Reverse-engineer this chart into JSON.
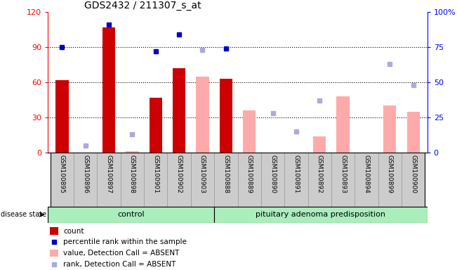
{
  "title": "GDS2432 / 211307_s_at",
  "samples": [
    "GSM100895",
    "GSM100896",
    "GSM100897",
    "GSM100898",
    "GSM100901",
    "GSM100902",
    "GSM100903",
    "GSM100888",
    "GSM100889",
    "GSM100890",
    "GSM100891",
    "GSM100892",
    "GSM100893",
    "GSM100894",
    "GSM100899",
    "GSM100900"
  ],
  "group_labels": [
    "control",
    "pituitary adenoma predisposition"
  ],
  "group_sizes": [
    7,
    9
  ],
  "disease_state_label": "disease state",
  "count_values": [
    62,
    0,
    107,
    0,
    47,
    72,
    0,
    63,
    0,
    0,
    0,
    0,
    0,
    0,
    0,
    0
  ],
  "count_absent_values": [
    0,
    0,
    0,
    1,
    0,
    0,
    65,
    0,
    36,
    0,
    0,
    14,
    48,
    0,
    40,
    35
  ],
  "percentile_rank_values": [
    75,
    null,
    91,
    null,
    72,
    84,
    null,
    74,
    null,
    null,
    null,
    null,
    null,
    null,
    null,
    null
  ],
  "rank_absent_values": [
    null,
    5,
    null,
    13,
    null,
    null,
    73,
    null,
    null,
    28,
    15,
    37,
    null,
    null,
    63,
    48
  ],
  "ylim_left": [
    0,
    120
  ],
  "ylim_right": [
    0,
    100
  ],
  "yticks_left": [
    0,
    30,
    60,
    90,
    120
  ],
  "yticks_right": [
    0,
    25,
    50,
    75,
    100
  ],
  "yticklabels_right": [
    "0",
    "25",
    "50",
    "75",
    "100%"
  ],
  "bar_color_present": "#cc0000",
  "bar_color_absent": "#ffaaaa",
  "dot_color_present": "#0000cc",
  "dot_color_absent": "#aaaadd",
  "background_plot": "#ffffff",
  "cell_bg_color": "#cccccc",
  "cell_border_color": "#999999",
  "group_bg_color": "#aaeebb",
  "group_border_color": "#336633",
  "legend_items": [
    "count",
    "percentile rank within the sample",
    "value, Detection Call = ABSENT",
    "rank, Detection Call = ABSENT"
  ]
}
